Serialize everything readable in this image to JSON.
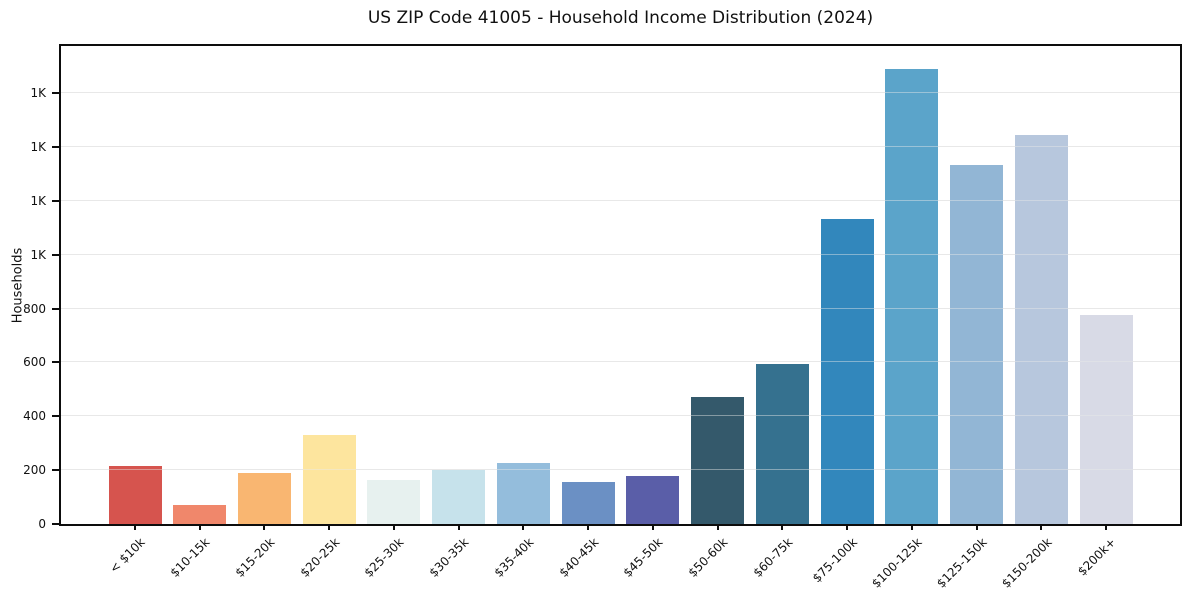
{
  "chart_data": {
    "type": "bar",
    "title": "US ZIP Code 41005 - Household Income Distribution (2024)",
    "xlabel": "",
    "ylabel": "Households",
    "categories": [
      "< $10k",
      "$10-15k",
      "$15-20k",
      "$20-25k",
      "$25-30k",
      "$30-35k",
      "$35-40k",
      "$40-45k",
      "$45-50k",
      "$50-60k",
      "$60-75k",
      "$75-100k",
      "$100-125k",
      "$125-150k",
      "$150-200k",
      "$200k+"
    ],
    "values": [
      214,
      70,
      190,
      330,
      165,
      202,
      228,
      157,
      179,
      471,
      594,
      1133,
      1688,
      1335,
      1443,
      776
    ],
    "bar_colors": [
      "#d6544e",
      "#f0876b",
      "#f9b671",
      "#fde59e",
      "#e7f1ef",
      "#c6e2eb",
      "#94bddc",
      "#6b90c4",
      "#5a5ea8",
      "#34596b",
      "#35718f",
      "#3287bc",
      "#5ba4ca",
      "#92b6d5",
      "#b7c7dd",
      "#d8dae6"
    ],
    "ylim": [
      0,
      1775
    ],
    "yticks": [
      {
        "value": 0,
        "label": "0"
      },
      {
        "value": 200,
        "label": "200"
      },
      {
        "value": 400,
        "label": "400"
      },
      {
        "value": 600,
        "label": "600"
      },
      {
        "value": 800,
        "label": "800"
      },
      {
        "value": 1000,
        "label": "1K"
      },
      {
        "value": 1200,
        "label": "1K"
      },
      {
        "value": 1400,
        "label": "1K"
      },
      {
        "value": 1600,
        "label": "1K"
      }
    ],
    "grid": "horizontal",
    "legend_position": "none",
    "text_color": "#111111",
    "grid_color": "#e7e7e7",
    "spine_color": "#0d0d0d",
    "background_color": "#ffffff"
  }
}
